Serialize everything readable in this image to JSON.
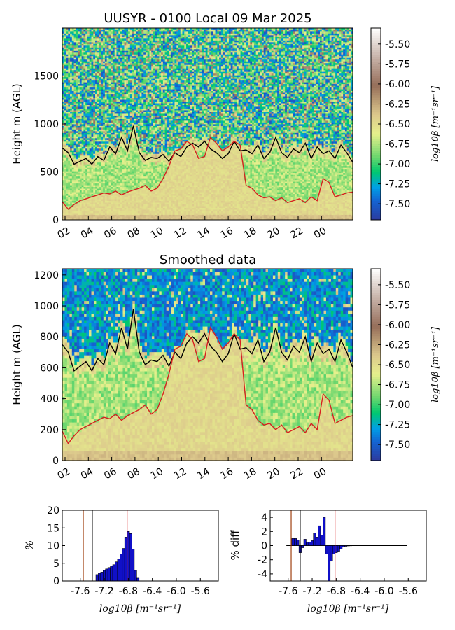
{
  "figure": {
    "title": "UUSYR - 0100 Local 09 Mar 2025",
    "subtitle": "Smoothed data"
  },
  "chart_data": [
    {
      "type": "heatmap",
      "name": "raw-backscatter",
      "title": "UUSYR - 0100 Local 09 Mar 2025",
      "ylabel": "Height m (AGL)",
      "ylim": [
        0,
        2000
      ],
      "yticks": [
        "0",
        "500",
        "1000",
        "1500"
      ],
      "xticks": [
        "02",
        "04",
        "06",
        "08",
        "10",
        "12",
        "14",
        "16",
        "18",
        "20",
        "22",
        "00"
      ],
      "colorbar": {
        "label": "log10β [m⁻¹sr⁻¹]",
        "range": [
          -7.7,
          -5.3
        ],
        "ticks": [
          "-5.50",
          "-5.75",
          "-6.00",
          "-6.25",
          "-6.50",
          "-6.75",
          "-7.00",
          "-7.25",
          "-7.50"
        ]
      },
      "lines": [
        {
          "color": "#000000",
          "values": [
            750,
            700,
            580,
            610,
            640,
            580,
            660,
            620,
            760,
            690,
            860,
            720,
            980,
            700,
            620,
            650,
            640,
            680,
            610,
            700,
            660,
            760,
            800,
            760,
            820,
            740,
            700,
            640,
            690,
            820,
            720,
            730,
            690,
            780,
            640,
            700,
            860,
            700,
            650,
            740,
            700,
            800,
            640,
            760,
            690,
            720,
            640,
            780,
            700,
            600
          ]
        },
        {
          "color": "#d62020",
          "values": [
            190,
            110,
            160,
            200,
            220,
            240,
            260,
            280,
            270,
            300,
            260,
            290,
            310,
            330,
            360,
            300,
            330,
            430,
            560,
            720,
            740,
            820,
            780,
            640,
            660,
            860,
            800,
            720,
            760,
            820,
            780,
            360,
            330,
            260,
            230,
            240,
            200,
            230,
            180,
            200,
            220,
            180,
            240,
            200,
            430,
            390,
            240,
            260,
            280,
            290
          ]
        }
      ]
    },
    {
      "type": "heatmap",
      "name": "smoothed-backscatter",
      "title": "Smoothed data",
      "ylabel": "Height m (AGL)",
      "ylim": [
        0,
        1240
      ],
      "yticks": [
        "0",
        "200",
        "400",
        "600",
        "800",
        "1000",
        "1200"
      ],
      "xticks": [
        "02",
        "04",
        "06",
        "08",
        "10",
        "12",
        "14",
        "16",
        "18",
        "20",
        "22",
        "00"
      ],
      "colorbar": {
        "label": "log10β [m⁻¹sr⁻¹]",
        "range": [
          -7.7,
          -5.3
        ],
        "ticks": [
          "-5.50",
          "-5.75",
          "-6.00",
          "-6.25",
          "-6.50",
          "-6.75",
          "-7.00",
          "-7.25",
          "-7.50"
        ]
      },
      "lines": [
        {
          "color": "#000000",
          "values": [
            750,
            700,
            580,
            610,
            640,
            580,
            660,
            620,
            760,
            690,
            860,
            720,
            980,
            700,
            620,
            650,
            640,
            680,
            610,
            700,
            660,
            760,
            800,
            760,
            820,
            740,
            700,
            640,
            690,
            820,
            720,
            730,
            690,
            780,
            640,
            700,
            860,
            700,
            650,
            740,
            700,
            800,
            640,
            760,
            690,
            720,
            640,
            780,
            700,
            600
          ]
        },
        {
          "color": "#d62020",
          "values": [
            190,
            110,
            160,
            200,
            220,
            240,
            260,
            280,
            270,
            300,
            260,
            290,
            310,
            330,
            360,
            300,
            330,
            430,
            560,
            720,
            740,
            820,
            780,
            640,
            660,
            860,
            800,
            720,
            760,
            820,
            780,
            360,
            330,
            260,
            230,
            240,
            200,
            230,
            180,
            200,
            220,
            180,
            240,
            200,
            430,
            390,
            240,
            260,
            280,
            290
          ]
        }
      ]
    },
    {
      "type": "bar",
      "name": "histogram",
      "ylabel": "%",
      "xlabel": "log10β [m⁻¹sr⁻¹]",
      "xlim": [
        -7.9,
        -5.3
      ],
      "ylim": [
        0,
        20
      ],
      "xticks": [
        "-7.6",
        "-7.2",
        "-6.8",
        "-6.4",
        "-6.0",
        "-5.6"
      ],
      "yticks": [
        "0",
        "5",
        "10",
        "15",
        "20"
      ],
      "bar_width": 0.04,
      "x": [
        -7.32,
        -7.28,
        -7.24,
        -7.2,
        -7.16,
        -7.12,
        -7.08,
        -7.04,
        -7.0,
        -6.96,
        -6.92,
        -6.88,
        -6.84,
        -6.8,
        -6.76,
        -6.72,
        -6.68,
        -6.64
      ],
      "values": [
        1.8,
        2.2,
        2.5,
        3.0,
        3.4,
        3.8,
        4.2,
        4.6,
        5.4,
        6.2,
        7.6,
        9.2,
        12.4,
        14.0,
        13.4,
        9.0,
        3.0,
        0.8
      ],
      "vlines": [
        {
          "x": -7.55,
          "color": "#a04010"
        },
        {
          "x": -7.4,
          "color": "#000000"
        },
        {
          "x": -6.82,
          "color": "#d62020"
        }
      ]
    },
    {
      "type": "bar",
      "name": "percent-diff",
      "ylabel": "% diff",
      "xlabel": "log10β [m⁻¹sr⁻¹]",
      "xlim": [
        -7.9,
        -5.3
      ],
      "ylim": [
        -5,
        5
      ],
      "xticks": [
        "-7.6",
        "-7.2",
        "-6.8",
        "-6.4",
        "-6.0",
        "-5.6"
      ],
      "yticks": [
        "4",
        "2",
        "0",
        "-2",
        "-4"
      ],
      "bar_width": 0.04,
      "x": [
        -7.52,
        -7.48,
        -7.44,
        -7.4,
        -7.36,
        -7.32,
        -7.28,
        -7.24,
        -7.2,
        -7.16,
        -7.12,
        -7.08,
        -7.04,
        -7.0,
        -6.96,
        -6.92,
        -6.88,
        -6.84,
        -6.8,
        -6.76,
        -6.72,
        -6.68,
        -6.64,
        -6.6,
        -6.56
      ],
      "values": [
        1.0,
        1.0,
        0.8,
        -1.0,
        -0.3,
        0.9,
        0.5,
        0.5,
        0.7,
        1.8,
        1.2,
        2.8,
        1.5,
        4.0,
        -1.2,
        -5.0,
        -2.2,
        -1.2,
        -1.0,
        -0.8,
        -0.5,
        -0.2,
        -0.1,
        -0.05,
        0.02
      ],
      "vlines": [
        {
          "x": -7.55,
          "color": "#a04010"
        },
        {
          "x": -7.4,
          "color": "#000000"
        },
        {
          "x": -6.82,
          "color": "#d62020"
        }
      ]
    }
  ]
}
